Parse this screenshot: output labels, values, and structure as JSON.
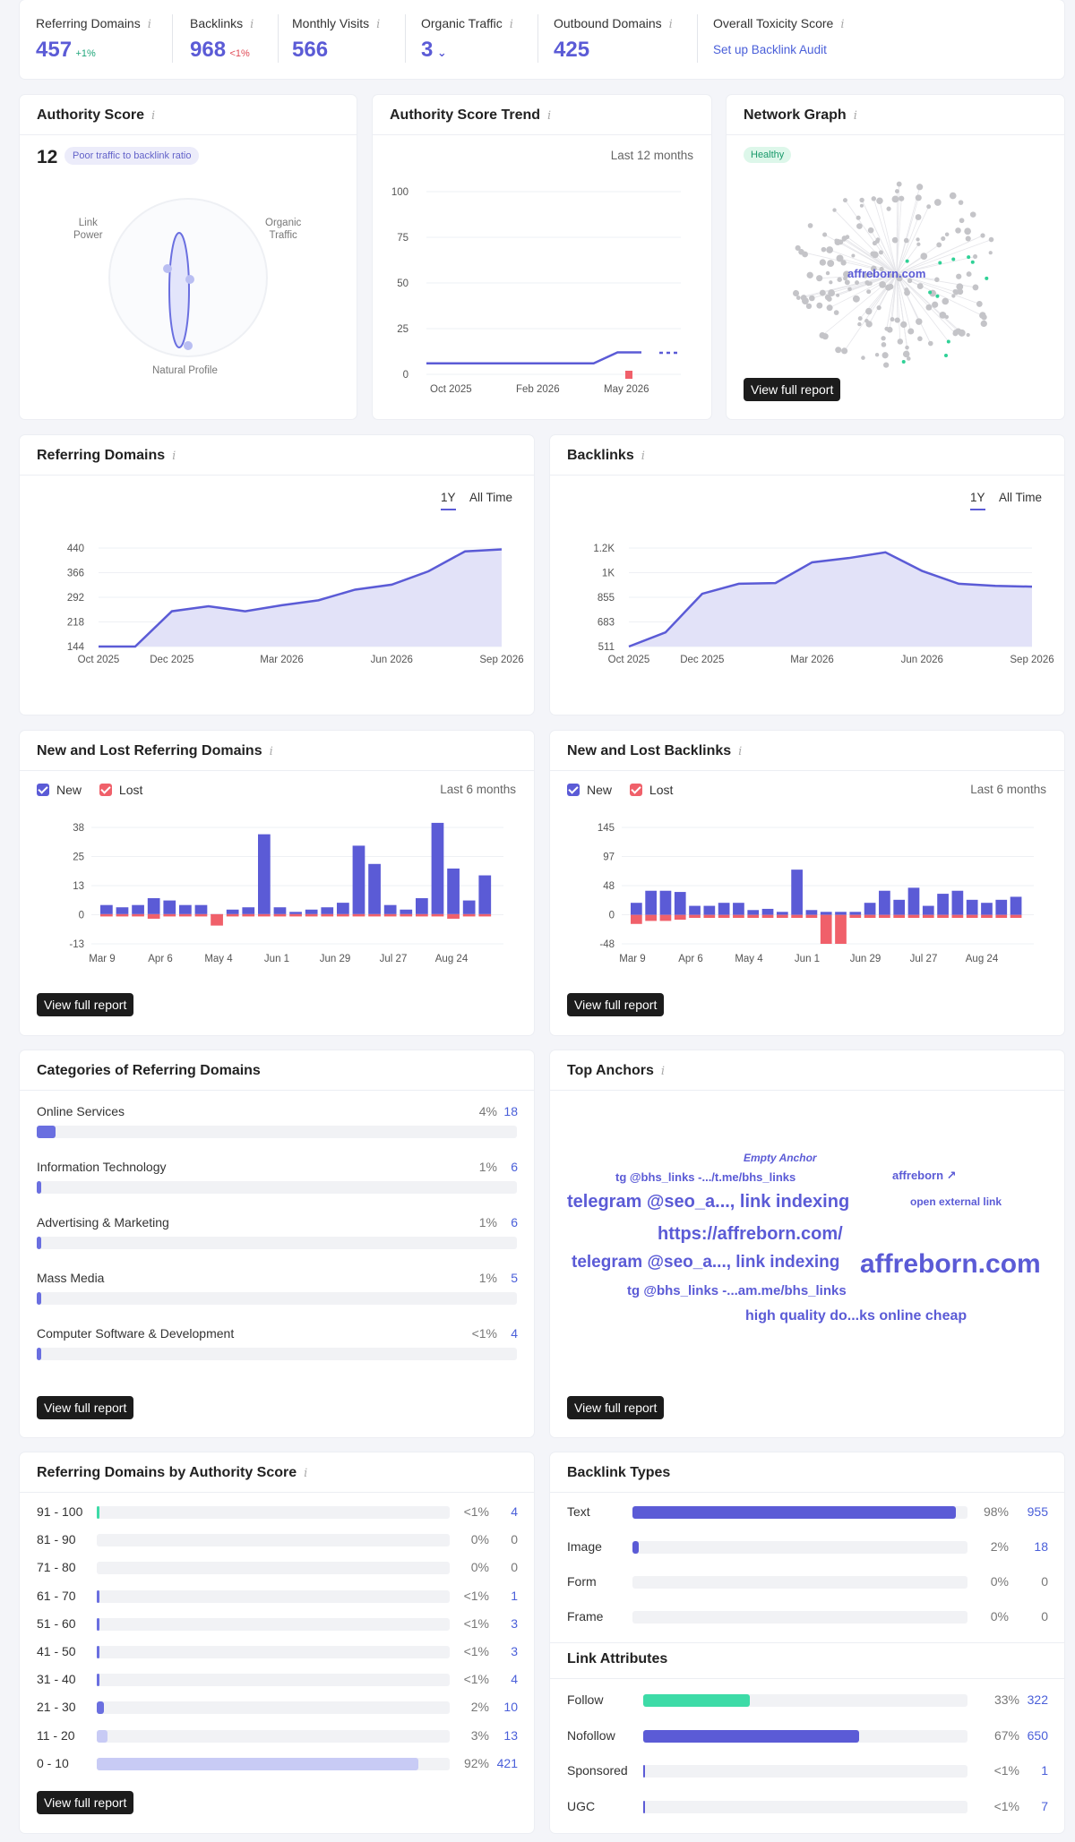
{
  "summary": {
    "ref_domains": {
      "label": "Referring Domains",
      "value": "457",
      "delta": "+1%"
    },
    "backlinks": {
      "label": "Backlinks",
      "value": "968",
      "delta": "<1%"
    },
    "monthly_visits": {
      "label": "Monthly Visits",
      "value": "566"
    },
    "organic_traffic": {
      "label": "Organic Traffic",
      "value": "3"
    },
    "outbound_domains": {
      "label": "Outbound Domains",
      "value": "425"
    },
    "toxicity": {
      "label": "Overall Toxicity Score",
      "link": "Set up Backlink Audit"
    }
  },
  "authority": {
    "title": "Authority Score",
    "score": "12",
    "badge": "Poor traffic to backlink ratio",
    "labels": {
      "link_power": "Link\nPower",
      "organic_traffic": "Organic\nTraffic",
      "natural_profile": "Natural Profile"
    }
  },
  "trend": {
    "title": "Authority Score Trend",
    "period": "Last 12 months",
    "y_ticks": [
      "100",
      "75",
      "50",
      "25",
      "0"
    ],
    "x_ticks": [
      "Oct 2025",
      "Feb 2026",
      "May 2026"
    ]
  },
  "network": {
    "title": "Network Graph",
    "badge": "Healthy",
    "domain": "affreborn.com",
    "button": "View full report"
  },
  "ref_domains_chart": {
    "title": "Referring Domains",
    "tabs": [
      "1Y",
      "All Time"
    ],
    "y_ticks": [
      "440",
      "366",
      "292",
      "218",
      "144"
    ],
    "x_ticks": [
      "Oct 2025",
      "Dec 2025",
      "Mar 2026",
      "Jun 2026",
      "Sep 2026"
    ]
  },
  "backlinks_chart": {
    "title": "Backlinks",
    "tabs": [
      "1Y",
      "All Time"
    ],
    "y_ticks": [
      "1.2K",
      "1K",
      "855",
      "683",
      "511"
    ],
    "x_ticks": [
      "Oct 2025",
      "Dec 2025",
      "Mar 2026",
      "Jun 2026",
      "Sep 2026"
    ]
  },
  "new_lost_rd": {
    "title": "New and Lost Referring Domains",
    "legend_new": "New",
    "legend_lost": "Lost",
    "period": "Last 6 months",
    "y_ticks": [
      "38",
      "25",
      "13",
      "0",
      "-13"
    ],
    "x_ticks": [
      "Mar 9",
      "Apr 6",
      "May 4",
      "Jun 1",
      "Jun 29",
      "Jul 27",
      "Aug 24"
    ],
    "button": "View full report"
  },
  "new_lost_bl": {
    "title": "New and Lost Backlinks",
    "legend_new": "New",
    "legend_lost": "Lost",
    "period": "Last 6 months",
    "y_ticks": [
      "145",
      "97",
      "48",
      "0",
      "-48"
    ],
    "x_ticks": [
      "Mar 9",
      "Apr 6",
      "May 4",
      "Jun 1",
      "Jun 29",
      "Jul 27",
      "Aug 24"
    ],
    "button": "View full report"
  },
  "categories": {
    "title": "Categories of Referring Domains",
    "items": [
      {
        "label": "Online Services",
        "pct": "4%",
        "value": "18"
      },
      {
        "label": "Information Technology",
        "pct": "1%",
        "value": "6"
      },
      {
        "label": "Advertising & Marketing",
        "pct": "1%",
        "value": "6"
      },
      {
        "label": "Mass Media",
        "pct": "1%",
        "value": "5"
      },
      {
        "label": "Computer Software & Development",
        "pct": "<1%",
        "value": "4"
      }
    ],
    "button": "View full report"
  },
  "anchors": {
    "title": "Top Anchors",
    "items": [
      "Empty Anchor",
      "tg @bhs_links -.../t.me/bhs_links",
      "affreborn ↗",
      "telegram @seo_a..., link indexing",
      "open external link",
      "https://affreborn.com/",
      "telegram @seo_a..., link indexing",
      "affreborn.com",
      "tg @bhs_links -...am.me/bhs_links",
      "high quality do...ks online cheap"
    ],
    "button": "View full report"
  },
  "authority_dist": {
    "title": "Referring Domains by Authority Score",
    "rows": [
      {
        "label": "91 - 100",
        "pct": "<1%",
        "value": "4"
      },
      {
        "label": "81 - 90",
        "pct": "0%",
        "value": "0"
      },
      {
        "label": "71 - 80",
        "pct": "0%",
        "value": "0"
      },
      {
        "label": "61 - 70",
        "pct": "<1%",
        "value": "1"
      },
      {
        "label": "51 - 60",
        "pct": "<1%",
        "value": "3"
      },
      {
        "label": "41 - 50",
        "pct": "<1%",
        "value": "3"
      },
      {
        "label": "31 - 40",
        "pct": "<1%",
        "value": "4"
      },
      {
        "label": "21 - 30",
        "pct": "2%",
        "value": "10"
      },
      {
        "label": "11 - 20",
        "pct": "3%",
        "value": "13"
      },
      {
        "label": "0 - 10",
        "pct": "92%",
        "value": "421"
      }
    ],
    "button": "View full report"
  },
  "backlink_types": {
    "title": "Backlink Types",
    "rows": [
      {
        "label": "Text",
        "pct": "98%",
        "value": "955"
      },
      {
        "label": "Image",
        "pct": "2%",
        "value": "18"
      },
      {
        "label": "Form",
        "pct": "0%",
        "value": "0"
      },
      {
        "label": "Frame",
        "pct": "0%",
        "value": "0"
      }
    ]
  },
  "link_attrs": {
    "title": "Link Attributes",
    "rows": [
      {
        "label": "Follow",
        "pct": "33%",
        "value": "322"
      },
      {
        "label": "Nofollow",
        "pct": "67%",
        "value": "650"
      },
      {
        "label": "Sponsored",
        "pct": "<1%",
        "value": "1"
      },
      {
        "label": "UGC",
        "pct": "<1%",
        "value": "7"
      }
    ]
  },
  "colors": {
    "accent": "#5b5bd6",
    "lost": "#f0606a",
    "green": "#3ddba7",
    "area": "#dcdcf7"
  },
  "chart_data": [
    {
      "type": "area",
      "title": "Referring Domains",
      "x": [
        "Oct 2025",
        "Nov 2025",
        "Dec 2025",
        "Jan 2026",
        "Feb 2026",
        "Mar 2026",
        "Apr 2026",
        "May 2026",
        "Jun 2026",
        "Jul 2026",
        "Aug 2026",
        "Sep 2026"
      ],
      "values": [
        144,
        144,
        250,
        265,
        250,
        268,
        283,
        315,
        330,
        370,
        430,
        436
      ],
      "ylim": [
        144,
        440
      ]
    },
    {
      "type": "area",
      "title": "Backlinks",
      "x": [
        "Oct 2025",
        "Nov 2025",
        "Dec 2025",
        "Jan 2026",
        "Feb 2026",
        "Mar 2026",
        "Apr 2026",
        "May 2026",
        "Jun 2026",
        "Jul 2026",
        "Aug 2026",
        "Sep 2026"
      ],
      "values": [
        511,
        610,
        880,
        950,
        955,
        1100,
        1130,
        1170,
        1040,
        950,
        935,
        930
      ],
      "ylim": [
        511,
        1200
      ]
    },
    {
      "type": "line",
      "title": "Authority Score Trend",
      "x": [
        "Oct 2025",
        "Nov 2025",
        "Dec 2025",
        "Jan 2026",
        "Feb 2026",
        "Mar 2026",
        "Apr 2026",
        "May 2026",
        "Jun 2026",
        "Jul 2026",
        "Aug 2026",
        "Sep 2026"
      ],
      "values": [
        6,
        6,
        6,
        6,
        6,
        6,
        6,
        6,
        12,
        12,
        12,
        12
      ],
      "ylim": [
        0,
        100
      ]
    },
    {
      "type": "bar",
      "title": "New and Lost Referring Domains",
      "series": [
        {
          "name": "New",
          "values": [
            4,
            3,
            4,
            7,
            6,
            4,
            4,
            0,
            2,
            3,
            35,
            3,
            1,
            2,
            3,
            5,
            30,
            22,
            4,
            2,
            7,
            40,
            20,
            6,
            17
          ]
        },
        {
          "name": "Lost",
          "values": [
            -1,
            -1,
            -1,
            -2,
            -1,
            -1,
            -1,
            -5,
            -1,
            -1,
            -1,
            -1,
            -1,
            -1,
            -1,
            -1,
            -1,
            -1,
            -1,
            -1,
            -1,
            -1,
            -2,
            -1,
            -1
          ]
        }
      ],
      "ylim": [
        -13,
        38
      ]
    },
    {
      "type": "bar",
      "title": "New and Lost Backlinks",
      "series": [
        {
          "name": "New",
          "values": [
            20,
            40,
            40,
            38,
            15,
            15,
            20,
            20,
            8,
            10,
            5,
            75,
            8,
            5,
            5,
            5,
            20,
            40,
            25,
            45,
            15,
            35,
            40,
            25,
            20,
            25,
            30
          ]
        },
        {
          "name": "Lost",
          "values": [
            -15,
            -10,
            -10,
            -8,
            -5,
            -5,
            -5,
            -5,
            -5,
            -5,
            -5,
            -5,
            -5,
            -48,
            -48,
            -5,
            -5,
            -5,
            -5,
            -5,
            -5,
            -5,
            -5,
            -5,
            -5,
            -5,
            -5
          ]
        }
      ],
      "ylim": [
        -48,
        145
      ]
    }
  ]
}
